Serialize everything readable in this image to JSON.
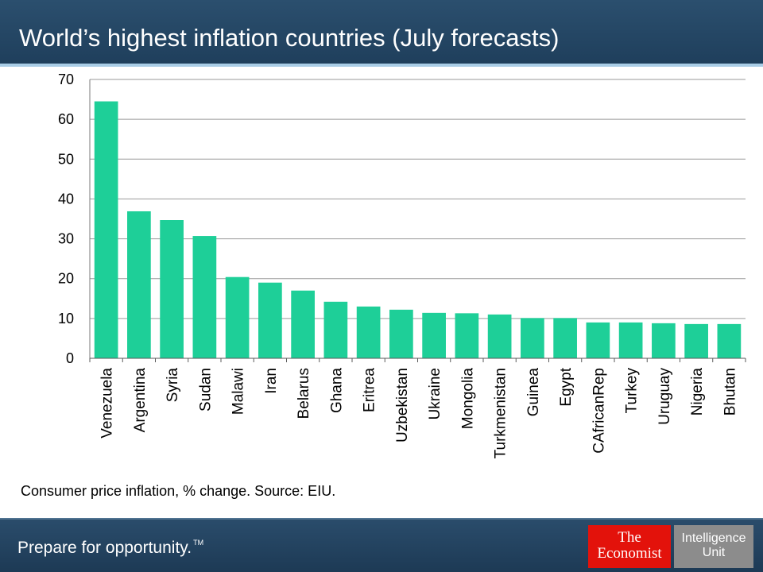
{
  "header": {
    "title": "World’s highest inflation countries (July forecasts)"
  },
  "caption": "Consumer price inflation, % change. Source: EIU.",
  "footer": {
    "tagline": "Prepare for opportunity.",
    "tagline_mark": "TM",
    "economist_logo": [
      "The",
      "Economist"
    ],
    "unit_logo": [
      "Intelligence",
      "Unit"
    ]
  },
  "colors": {
    "bar": "#1ecf98",
    "header": "#24466a",
    "grid": "#9a9a9a"
  },
  "chart_data": {
    "type": "bar",
    "title": "World’s highest inflation countries (July forecasts)",
    "xlabel": "",
    "ylabel": "",
    "categories": [
      "Venezuela",
      "Argentina",
      "Syria",
      "Sudan",
      "Malawi",
      "Iran",
      "Belarus",
      "Ghana",
      "Eritrea",
      "Uzbekistan",
      "Ukraine",
      "Mongolia",
      "Turkmenistan",
      "Guinea",
      "Egypt",
      "CAfricanRep",
      "Turkey",
      "Uruguay",
      "Nigeria",
      "Bhutan"
    ],
    "values": [
      64.5,
      36.9,
      34.7,
      30.7,
      20.4,
      19.0,
      17.0,
      14.2,
      13.0,
      12.2,
      11.4,
      11.3,
      11.0,
      10.1,
      10.1,
      9.0,
      9.0,
      8.8,
      8.6,
      8.6
    ],
    "yticks": [
      "0",
      "10",
      "20",
      "30",
      "40",
      "50",
      "60",
      "70"
    ],
    "ylim": [
      0,
      70
    ],
    "grid": true,
    "legend": "none"
  }
}
